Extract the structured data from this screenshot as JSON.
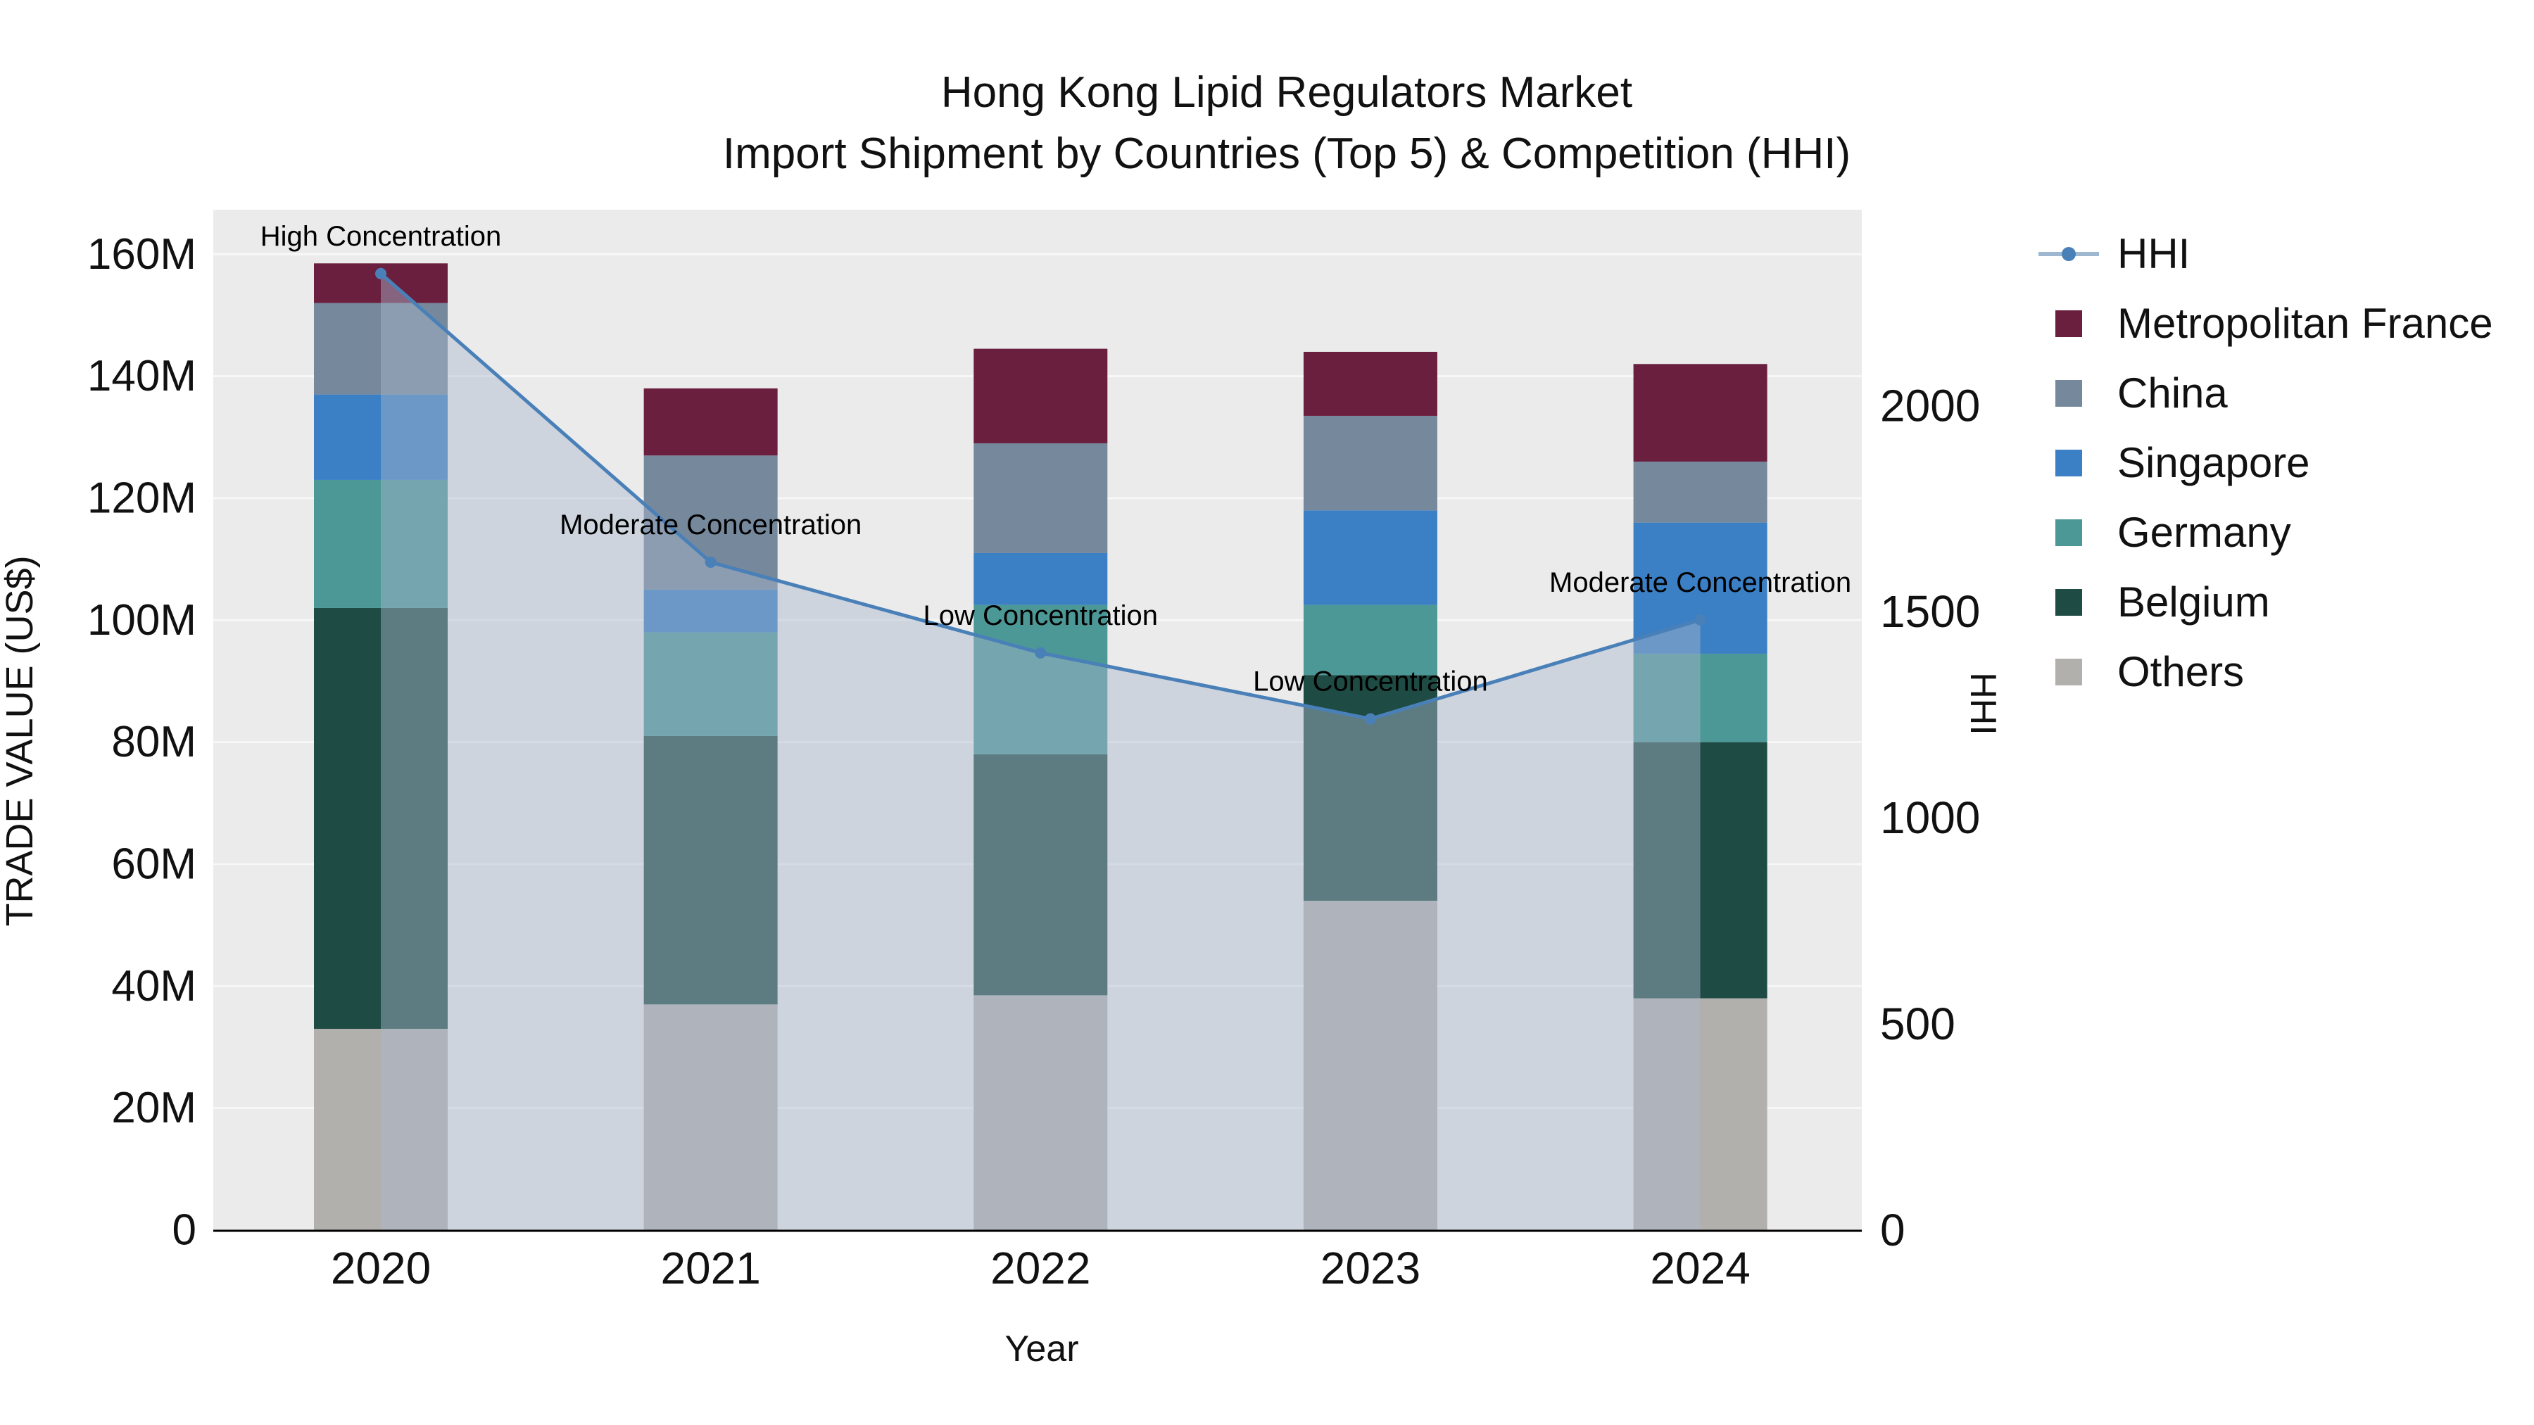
{
  "title": {
    "line1": "Hong Kong Lipid Regulators Market",
    "line2": "Import Shipment by Countries (Top 5) & Competition (HHI)"
  },
  "chart_data": {
    "type": "stacked-bar+line",
    "categories": [
      "2020",
      "2021",
      "2022",
      "2023",
      "2024"
    ],
    "series": [
      {
        "name": "Others",
        "color": "#b2b0ad",
        "values": [
          33,
          37,
          38.5,
          54,
          38
        ]
      },
      {
        "name": "Belgium",
        "color": "#1e4b44",
        "values": [
          69,
          44,
          39.5,
          37,
          42
        ]
      },
      {
        "name": "Germany",
        "color": "#4c9896",
        "values": [
          21,
          17,
          24.5,
          11.5,
          14.5
        ]
      },
      {
        "name": "Singapore",
        "color": "#3b7fc4",
        "values": [
          14,
          7,
          8.5,
          15.5,
          21.5
        ]
      },
      {
        "name": "China",
        "color": "#76889c",
        "values": [
          15,
          22,
          18,
          15.5,
          10
        ]
      },
      {
        "name": "Metropolitan France",
        "color": "#6a1f3e",
        "values": [
          6.5,
          11,
          15.5,
          10.5,
          16
        ]
      }
    ],
    "line": {
      "name": "HHI",
      "color": "#4a80b8",
      "area_color": "rgba(168,184,206,0.45)",
      "values": [
        2320,
        1620,
        1400,
        1240,
        1480
      ]
    },
    "annotations": [
      {
        "index": 0,
        "text": "High Concentration"
      },
      {
        "index": 1,
        "text": "Moderate Concentration"
      },
      {
        "index": 2,
        "text": "Low Concentration"
      },
      {
        "index": 3,
        "text": "Low Concentration"
      },
      {
        "index": 4,
        "text": "Moderate Concentration"
      }
    ],
    "y_left": {
      "label": "TRADE VALUE (US$)",
      "unit": "M",
      "range": [
        0,
        167.3
      ],
      "ticks": [
        {
          "v": 0,
          "label": "0"
        },
        {
          "v": 20,
          "label": "20M"
        },
        {
          "v": 40,
          "label": "40M"
        },
        {
          "v": 60,
          "label": "60M"
        },
        {
          "v": 80,
          "label": "80M"
        },
        {
          "v": 100,
          "label": "100M"
        },
        {
          "v": 120,
          "label": "120M"
        },
        {
          "v": 140,
          "label": "140M"
        },
        {
          "v": 160,
          "label": "160M"
        }
      ]
    },
    "y_right": {
      "label": "HHI",
      "range": [
        0,
        2475
      ],
      "ticks": [
        {
          "v": 0,
          "label": "0"
        },
        {
          "v": 500,
          "label": "500"
        },
        {
          "v": 1000,
          "label": "1000"
        },
        {
          "v": 1500,
          "label": "1500"
        },
        {
          "v": 2000,
          "label": "2000"
        }
      ]
    },
    "x": {
      "label": "Year"
    },
    "legend_position": "right",
    "grid": true
  },
  "legend": {
    "items": [
      {
        "label": "HHI",
        "type": "line",
        "color": "#4a80b8"
      },
      {
        "label": "Metropolitan France",
        "type": "swatch",
        "color": "#6a1f3e"
      },
      {
        "label": "China",
        "type": "swatch",
        "color": "#76889c"
      },
      {
        "label": "Singapore",
        "type": "swatch",
        "color": "#3b7fc4"
      },
      {
        "label": "Germany",
        "type": "swatch",
        "color": "#4c9896"
      },
      {
        "label": "Belgium",
        "type": "swatch",
        "color": "#1e4b44"
      },
      {
        "label": "Others",
        "type": "swatch",
        "color": "#b2b0ad"
      }
    ]
  }
}
